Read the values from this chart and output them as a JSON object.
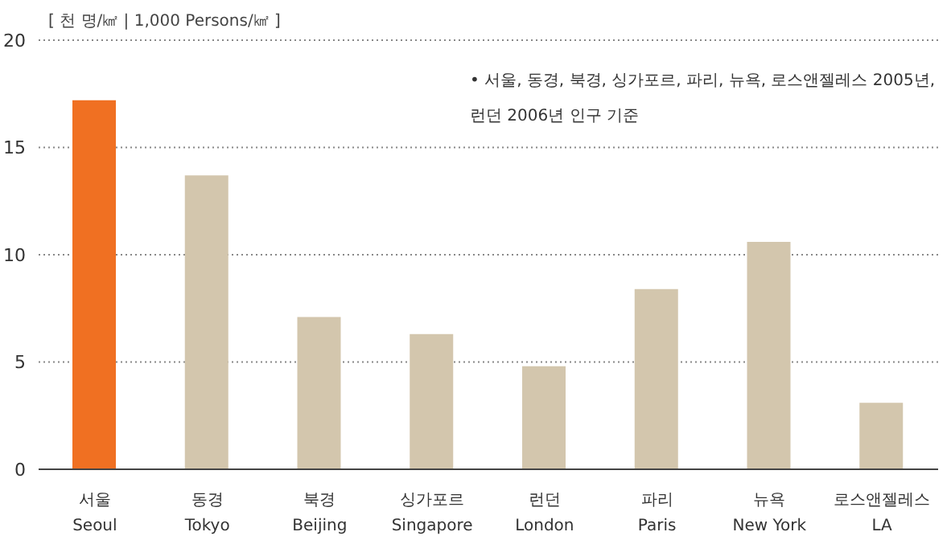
{
  "chart_data": {
    "type": "bar",
    "ylabel": "[ 천 명/㎢ | 1,000 Persons/㎢ ]",
    "categories": [
      "서울\nSeoul",
      "동경\nTokyo",
      "북경\nBeijing",
      "싱가포르\nSingapore",
      "런던\nLondon",
      "파리\nParis",
      "뉴욕\nNew York",
      "로스앤젤레스\nLA"
    ],
    "values": [
      17.2,
      13.7,
      7.1,
      6.3,
      4.8,
      8.4,
      10.6,
      3.1
    ],
    "colors": [
      "#f07022",
      "#d3c6ad",
      "#d3c6ad",
      "#d3c6ad",
      "#d3c6ad",
      "#d3c6ad",
      "#d3c6ad",
      "#d3c6ad"
    ],
    "ylim": [
      0,
      20
    ],
    "yticks": [
      0,
      5,
      10,
      15,
      20
    ],
    "grid": "y",
    "annotations": [
      "• 서울, 동경, 북경, 싱가포르, 파리, 뉴욕, 로스앤젤레스 2005년,\n런던 2006년 인구 기준"
    ]
  }
}
